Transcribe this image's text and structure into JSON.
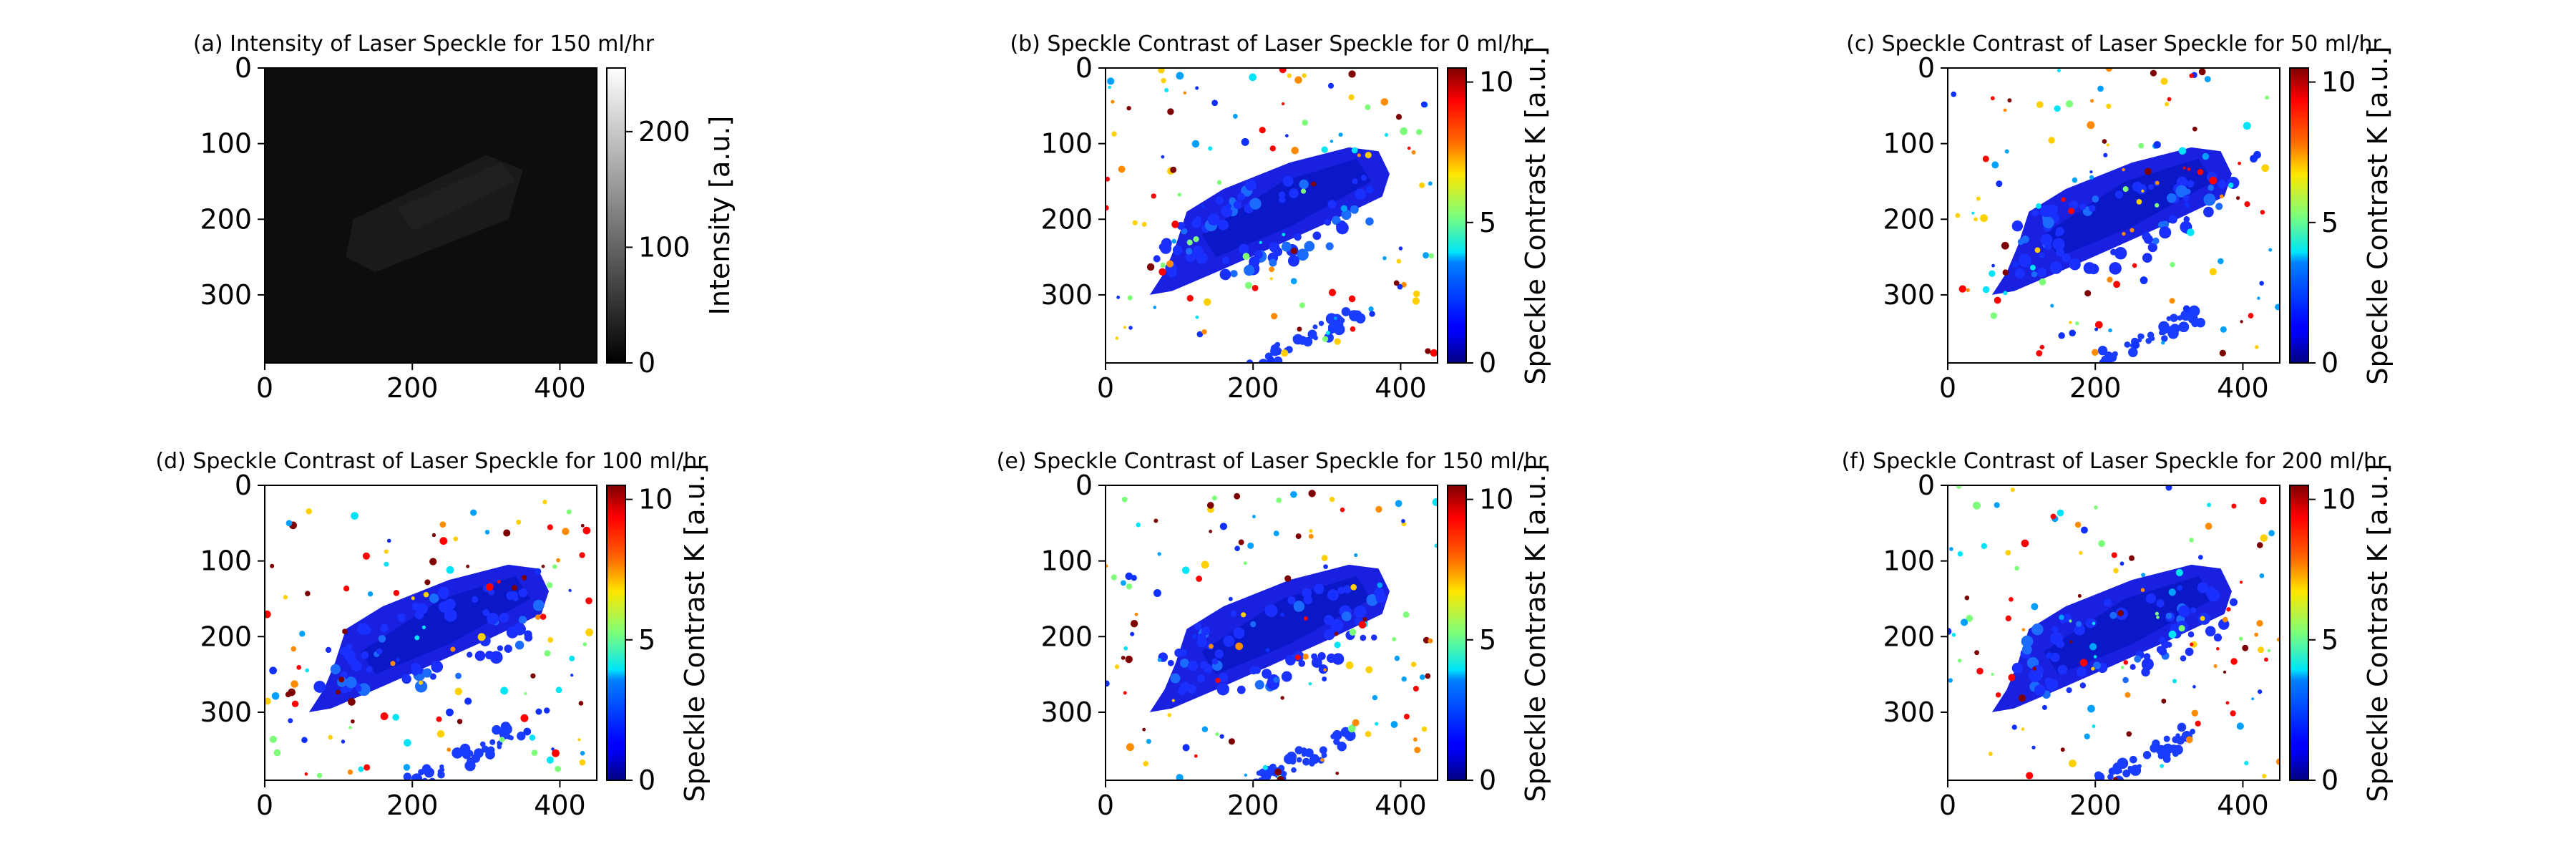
{
  "chart_data": [
    {
      "type": "heatmap",
      "title": "(a) Intensity of Laser Speckle for 150 ml/hr",
      "colormap": "gray",
      "xticks": [
        "0",
        "200",
        "400"
      ],
      "yticks": [
        "0",
        "100",
        "200",
        "300"
      ],
      "xlim": [
        0,
        450
      ],
      "ylim": [
        390,
        0
      ],
      "colorbar": {
        "label": "Intensity [a.u.]",
        "range": [
          0,
          255
        ],
        "ticks": [
          "0",
          "100",
          "200"
        ]
      },
      "description_values": {
        "background": 8,
        "object": 25
      }
    },
    {
      "type": "heatmap",
      "title": "(b) Speckle Contrast of Laser Speckle for 0 ml/hr",
      "colormap": "jet",
      "xticks": [
        "0",
        "200",
        "400"
      ],
      "yticks": [
        "0",
        "100",
        "200",
        "300"
      ],
      "xlim": [
        0,
        450
      ],
      "ylim": [
        390,
        0
      ],
      "colorbar": {
        "label": "Speckle Contrast K [a.u.]",
        "range": [
          0,
          10.5
        ],
        "ticks": [
          "0",
          "5",
          "10"
        ]
      }
    },
    {
      "type": "heatmap",
      "title": "(c) Speckle Contrast of Laser Speckle for 50 ml/hr",
      "colormap": "jet",
      "xticks": [
        "0",
        "200",
        "400"
      ],
      "yticks": [
        "0",
        "100",
        "200",
        "300"
      ],
      "xlim": [
        0,
        450
      ],
      "ylim": [
        390,
        0
      ],
      "colorbar": {
        "label": "Speckle Contrast K [a.u.]",
        "range": [
          0,
          10.5
        ],
        "ticks": [
          "0",
          "5",
          "10"
        ]
      }
    },
    {
      "type": "heatmap",
      "title": "(d) Speckle Contrast of Laser Speckle for 100 ml/hr",
      "colormap": "jet",
      "xticks": [
        "0",
        "200",
        "400"
      ],
      "yticks": [
        "0",
        "100",
        "200",
        "300"
      ],
      "xlim": [
        0,
        450
      ],
      "ylim": [
        390,
        0
      ],
      "colorbar": {
        "label": "Speckle Contrast K [a.u.]",
        "range": [
          0,
          10.5
        ],
        "ticks": [
          "0",
          "5",
          "10"
        ]
      }
    },
    {
      "type": "heatmap",
      "title": "(e) Speckle Contrast of Laser Speckle for 150 ml/hr",
      "colormap": "jet",
      "xticks": [
        "0",
        "200",
        "400"
      ],
      "yticks": [
        "0",
        "100",
        "200",
        "300"
      ],
      "xlim": [
        0,
        450
      ],
      "ylim": [
        390,
        0
      ],
      "colorbar": {
        "label": "Speckle Contrast K [a.u.]",
        "range": [
          0,
          10.5
        ],
        "ticks": [
          "0",
          "5",
          "10"
        ]
      }
    },
    {
      "type": "heatmap",
      "title": "(f) Speckle Contrast of Laser Speckle for 200 ml/hr",
      "colormap": "jet",
      "xticks": [
        "0",
        "200",
        "400"
      ],
      "yticks": [
        "0",
        "100",
        "200",
        "300"
      ],
      "xlim": [
        0,
        450
      ],
      "ylim": [
        390,
        0
      ],
      "colorbar": {
        "label": "Speckle Contrast K [a.u.]",
        "range": [
          0,
          10.5
        ],
        "ticks": [
          "0",
          "5",
          "10"
        ]
      }
    }
  ]
}
